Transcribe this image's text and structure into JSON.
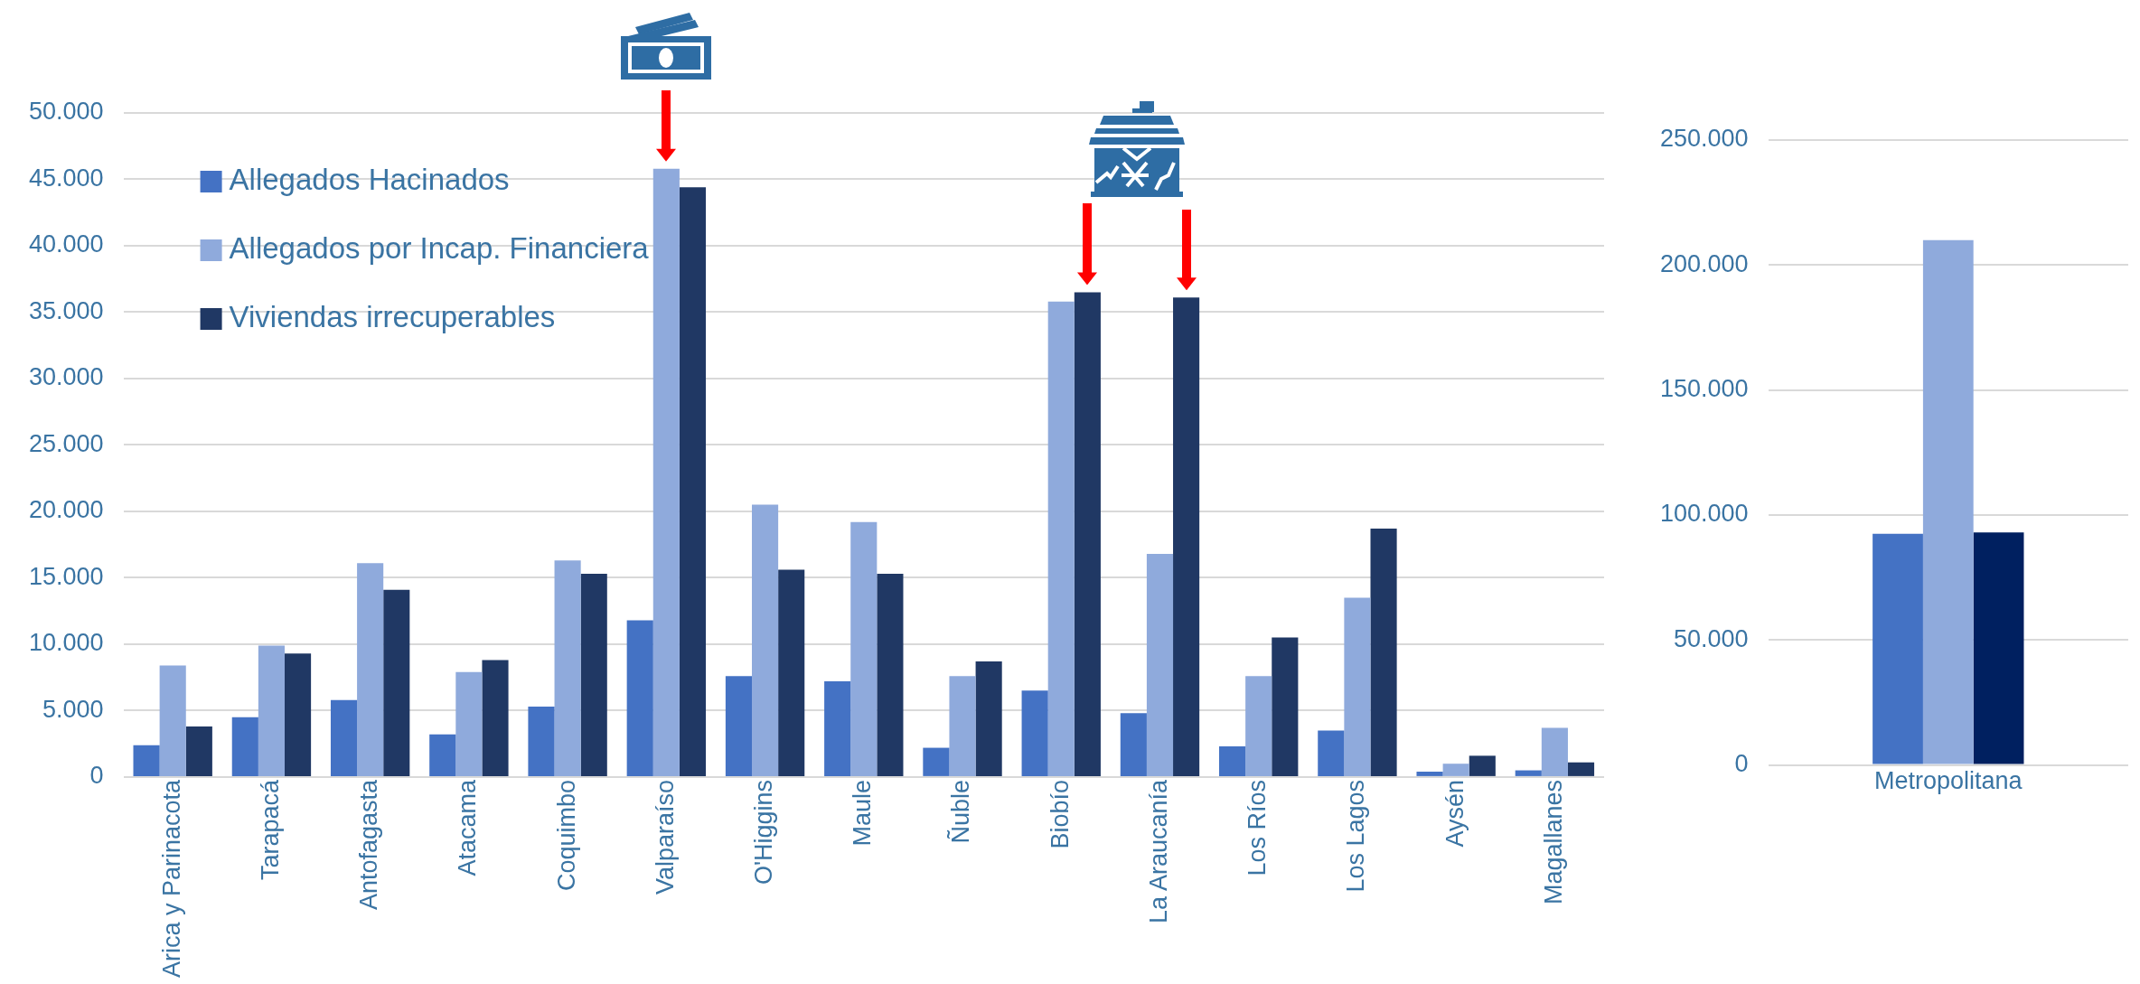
{
  "chart_data": [
    {
      "type": "bar",
      "categories": [
        "Arica y Parinacota",
        "Tarapacá",
        "Antofagasta",
        "Atacama",
        "Coquimbo",
        "Valparaíso",
        "O'Higgins",
        "Maule",
        "Ñuble",
        "Biobío",
        "La Araucanía",
        "Los Ríos",
        "Los Lagos",
        "Aysén",
        "Magallanes"
      ],
      "series": [
        {
          "name": "Allegados Hacinados",
          "color": "#4472c4",
          "values": [
            2400,
            4500,
            5800,
            3200,
            5300,
            11800,
            7600,
            7200,
            2200,
            6500,
            4800,
            2300,
            3500,
            400,
            500
          ]
        },
        {
          "name": "Allegados por Incap. Financiera",
          "color": "#8faadc",
          "values": [
            8400,
            9900,
            16100,
            7900,
            16300,
            45800,
            20500,
            19200,
            7600,
            35800,
            16800,
            7600,
            13500,
            1000,
            3700
          ]
        },
        {
          "name": "Viviendas irrecuperables",
          "color": "#203864",
          "values": [
            3800,
            9300,
            14100,
            8800,
            15300,
            44400,
            15600,
            15300,
            8700,
            36500,
            36100,
            10500,
            18700,
            1600,
            1100
          ]
        }
      ],
      "ylim": [
        0,
        50000
      ],
      "yticks": [
        {
          "value": 0,
          "label": "0"
        },
        {
          "value": 5000,
          "label": "5.000"
        },
        {
          "value": 10000,
          "label": "10.000"
        },
        {
          "value": 15000,
          "label": "15.000"
        },
        {
          "value": 20000,
          "label": "20.000"
        },
        {
          "value": 25000,
          "label": "25.000"
        },
        {
          "value": 30000,
          "label": "30.000"
        },
        {
          "value": 35000,
          "label": "35.000"
        },
        {
          "value": 40000,
          "label": "40.000"
        },
        {
          "value": 45000,
          "label": "45.000"
        },
        {
          "value": 50000,
          "label": "50.000"
        }
      ],
      "grid": "y",
      "legend": "top left"
    },
    {
      "type": "bar",
      "categories": [
        "Metropolitana"
      ],
      "series": [
        {
          "color": "#4472c4",
          "values": [
            92500
          ]
        },
        {
          "color": "#8faadc",
          "values": [
            210000
          ]
        },
        {
          "color": "#002060",
          "values": [
            93000
          ]
        }
      ],
      "ylim": [
        0,
        250000
      ],
      "yticks": [
        {
          "value": 0,
          "label": "0"
        },
        {
          "value": 50000,
          "label": "50.000"
        },
        {
          "value": 100000,
          "label": "100.000"
        },
        {
          "value": 150000,
          "label": "150.000"
        },
        {
          "value": 200000,
          "label": "200.000"
        },
        {
          "value": 250000,
          "label": "250.000"
        }
      ],
      "grid": "y"
    }
  ]
}
